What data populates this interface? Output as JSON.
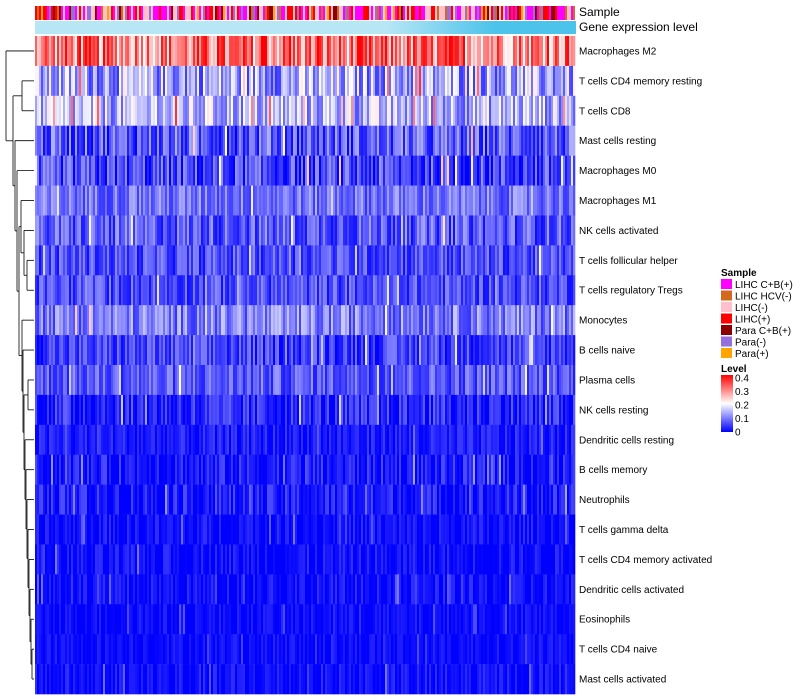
{
  "chart_data": {
    "type": "heatmap",
    "title": "",
    "rows": [
      {
        "name": "Macrophages M2",
        "mean": 0.3,
        "spread": 0.1
      },
      {
        "name": "T cells CD4 memory resting",
        "mean": 0.13,
        "spread": 0.09
      },
      {
        "name": "T cells CD8",
        "mean": 0.14,
        "spread": 0.08
      },
      {
        "name": "Mast cells resting",
        "mean": 0.07,
        "spread": 0.07
      },
      {
        "name": "Macrophages M0",
        "mean": 0.05,
        "spread": 0.07
      },
      {
        "name": "Macrophages M1",
        "mean": 0.09,
        "spread": 0.05
      },
      {
        "name": "NK cells activated",
        "mean": 0.07,
        "spread": 0.06
      },
      {
        "name": "T cells follicular helper",
        "mean": 0.06,
        "spread": 0.05
      },
      {
        "name": "T cells regulatory  Tregs",
        "mean": 0.06,
        "spread": 0.05
      },
      {
        "name": "Monocytes",
        "mean": 0.1,
        "spread": 0.06
      },
      {
        "name": "B cells naive",
        "mean": 0.05,
        "spread": 0.05
      },
      {
        "name": "Plasma cells",
        "mean": 0.07,
        "spread": 0.05
      },
      {
        "name": "NK cells resting",
        "mean": 0.03,
        "spread": 0.05
      },
      {
        "name": "Dendritic cells resting",
        "mean": 0.02,
        "spread": 0.03
      },
      {
        "name": "B cells memory",
        "mean": 0.02,
        "spread": 0.04
      },
      {
        "name": "Neutrophils",
        "mean": 0.02,
        "spread": 0.04
      },
      {
        "name": "T cells gamma delta",
        "mean": 0.01,
        "spread": 0.03
      },
      {
        "name": "T cells CD4 memory activated",
        "mean": 0.01,
        "spread": 0.03
      },
      {
        "name": "Dendritic cells activated",
        "mean": 0.01,
        "spread": 0.03
      },
      {
        "name": "Eosinophils",
        "mean": 0.01,
        "spread": 0.02
      },
      {
        "name": "T cells CD4 naive",
        "mean": 0.01,
        "spread": 0.02
      },
      {
        "name": "Mast cells activated",
        "mean": 0.01,
        "spread": 0.03
      }
    ],
    "annotations": {
      "sample_label": "Sample",
      "expression_label": "Gene expression level",
      "expression_color": "#5bc8e8",
      "expression_range": [
        "#b7e6f5",
        "#4cc3ea"
      ]
    },
    "sample_legend": {
      "title": "Sample",
      "items": [
        {
          "label": "LIHC C+B(+)",
          "color": "#ff00ff"
        },
        {
          "label": "LIHC HCV(-)",
          "color": "#d2691e"
        },
        {
          "label": "LIHC(-)",
          "color": "#ffc0cb"
        },
        {
          "label": "LIHC(+)",
          "color": "#ff0000"
        },
        {
          "label": "Para C+B(+)",
          "color": "#8b0000"
        },
        {
          "label": "Para(-)",
          "color": "#9370db"
        },
        {
          "label": "Para(+)",
          "color": "#ffa500"
        }
      ]
    },
    "level_legend": {
      "title": "Level",
      "ticks": [
        "0.4",
        "0.3",
        "0.2",
        "0.1",
        "0"
      ],
      "min": 0,
      "max": 0.4,
      "colors": {
        "low": "#0000ff",
        "mid": "#ffffff",
        "high": "#ff0000"
      }
    }
  }
}
